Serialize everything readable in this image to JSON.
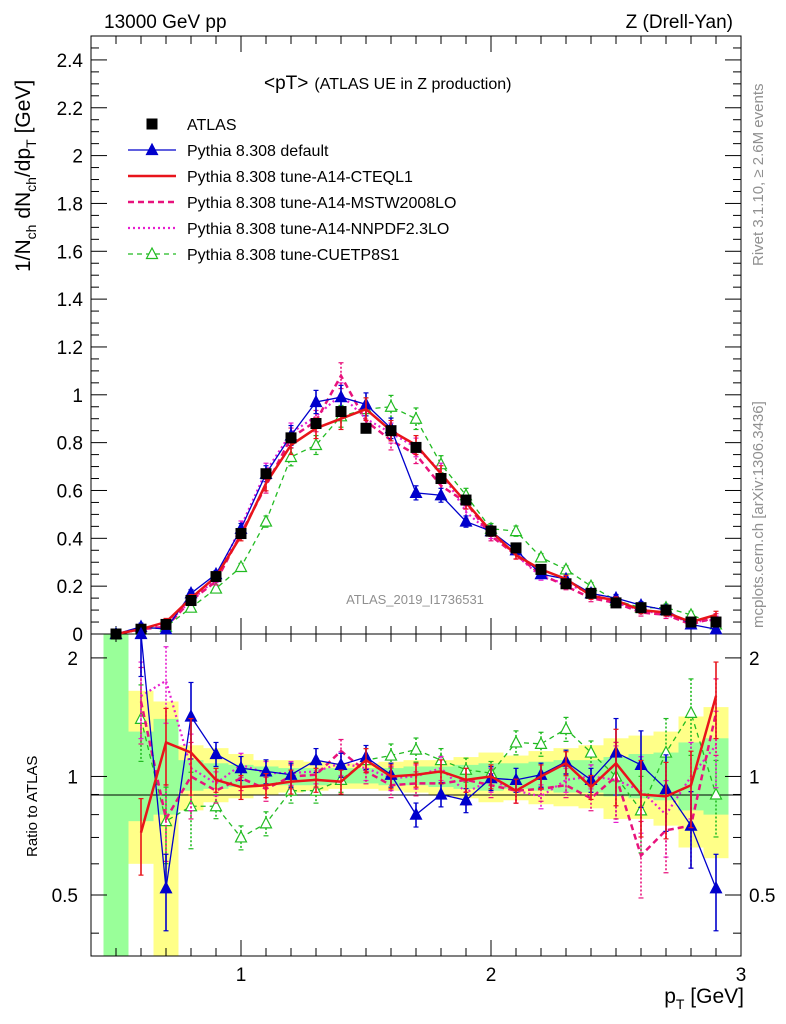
{
  "header": {
    "left": "13000 GeV pp",
    "right": "Z (Drell-Yan)"
  },
  "side": {
    "top": "Rivet 3.1.10, ≥ 2.6M events",
    "bottom": "mcplots.cern.ch [arXiv:1306.3436]"
  },
  "watermark": "ATLAS_2019_I1736531",
  "colors": {
    "data": "#000000",
    "default": "#0000cc",
    "cteql1": "#e8141b",
    "mstw": "#e8127c",
    "nnpdf": "#e61ecf",
    "cuetp": "#22bb22",
    "band_green": "#99ff99",
    "band_yellow": "#ffff88"
  },
  "chart_data": [
    {
      "type": "line",
      "title": "<pT>",
      "title_note": "(ATLAS UE in Z production)",
      "ylabel": {
        "p1": "1/N",
        "s1": "ch",
        "p2": " dN",
        "s2": "ch",
        "p3": "/dp",
        "s3": "T",
        "p4": " [GeV]"
      },
      "xlim": [
        0.4,
        3.0
      ],
      "ylim": [
        0,
        2.5
      ],
      "yticks": [
        "0",
        "0.2",
        "0.4",
        "0.6",
        "0.8",
        "1",
        "1.2",
        "1.4",
        "1.6",
        "1.8",
        "2",
        "2.2",
        "2.4"
      ],
      "legend_position": "top-left",
      "x": [
        0.5,
        0.6,
        0.7,
        0.8,
        0.9,
        1.0,
        1.1,
        1.2,
        1.3,
        1.4,
        1.5,
        1.6,
        1.7,
        1.8,
        1.9,
        2.0,
        2.1,
        2.2,
        2.3,
        2.4,
        2.5,
        2.6,
        2.7,
        2.8,
        2.9
      ],
      "series": [
        {
          "name": "ATLAS",
          "values": [
            0.0,
            0.02,
            0.04,
            0.14,
            0.24,
            0.42,
            0.67,
            0.82,
            0.88,
            0.93,
            0.86,
            0.85,
            0.78,
            0.65,
            0.56,
            0.43,
            0.36,
            0.27,
            0.21,
            0.17,
            0.13,
            0.11,
            0.1,
            0.05,
            0.05
          ]
        },
        {
          "name": "Pythia 8.308 default",
          "values": [
            0.0,
            0.03,
            0.02,
            0.17,
            0.25,
            0.44,
            0.67,
            0.83,
            0.97,
            0.99,
            0.96,
            0.86,
            0.59,
            0.58,
            0.47,
            0.43,
            0.35,
            0.25,
            0.23,
            0.17,
            0.15,
            0.12,
            0.1,
            0.04,
            0.02
          ]
        },
        {
          "name": "Pythia 8.308 tune-A14-CTEQL1",
          "values": [
            0.0,
            0.02,
            0.05,
            0.15,
            0.24,
            0.41,
            0.63,
            0.79,
            0.86,
            0.9,
            0.94,
            0.85,
            0.79,
            0.67,
            0.55,
            0.43,
            0.33,
            0.27,
            0.23,
            0.16,
            0.14,
            0.1,
            0.09,
            0.05,
            0.08
          ]
        },
        {
          "name": "Pythia 8.308 tune-A14-MSTW2008LO",
          "values": [
            0.0,
            0.02,
            0.03,
            0.14,
            0.22,
            0.42,
            0.62,
            0.82,
            0.89,
            1.08,
            0.89,
            0.81,
            0.75,
            0.62,
            0.55,
            0.41,
            0.33,
            0.25,
            0.2,
            0.15,
            0.13,
            0.09,
            0.08,
            0.04,
            0.07
          ]
        },
        {
          "name": "Pythia 8.308 tune-A14-NNPDF2.3LO",
          "values": [
            0.0,
            0.02,
            0.04,
            0.14,
            0.23,
            0.45,
            0.68,
            0.84,
            0.91,
            1.0,
            0.9,
            0.84,
            0.78,
            0.68,
            0.51,
            0.42,
            0.33,
            0.24,
            0.21,
            0.17,
            0.13,
            0.1,
            0.08,
            0.05,
            0.06
          ]
        },
        {
          "name": "Pythia 8.308 tune-CUETP8S1",
          "values": [
            0.0,
            0.02,
            0.03,
            0.11,
            0.19,
            0.28,
            0.47,
            0.74,
            0.79,
            0.91,
            0.94,
            0.95,
            0.9,
            0.71,
            0.58,
            0.44,
            0.43,
            0.32,
            0.27,
            0.2,
            0.14,
            0.11,
            0.11,
            0.08,
            0.04
          ]
        }
      ]
    },
    {
      "type": "line",
      "ylabel": "Ratio to ATLAS",
      "xlabel": {
        "p1": "p",
        "s1": "T",
        "p2": " [GeV]"
      },
      "xlim": [
        0.4,
        3.0
      ],
      "ylim": [
        0.35,
        2.3
      ],
      "yscale": "log",
      "xticks": [
        "1",
        "2",
        "3"
      ],
      "yticks": [
        "0.5",
        "1",
        "2"
      ],
      "x": [
        0.6,
        0.7,
        0.8,
        0.9,
        1.0,
        1.1,
        1.2,
        1.3,
        1.4,
        1.5,
        1.6,
        1.7,
        1.8,
        1.9,
        2.0,
        2.1,
        2.2,
        2.3,
        2.4,
        2.5,
        2.6,
        2.7,
        2.8,
        2.9
      ],
      "series": [
        {
          "name": "Pythia 8.308 default",
          "values": [
            2.3,
            0.52,
            1.42,
            1.14,
            1.05,
            1.03,
            1.01,
            1.1,
            1.07,
            1.12,
            1.01,
            0.8,
            0.9,
            0.87,
            0.99,
            0.98,
            1.01,
            1.09,
            0.98,
            1.15,
            1.07,
            0.93,
            0.75,
            0.52
          ]
        },
        {
          "name": "Pythia 8.308 tune-A14-CTEQL1",
          "values": [
            0.72,
            1.22,
            1.15,
            0.98,
            0.94,
            0.95,
            0.97,
            0.98,
            0.97,
            1.1,
            1.0,
            1.01,
            1.03,
            0.98,
            1.0,
            0.92,
            1.0,
            1.08,
            0.94,
            1.08,
            0.9,
            0.89,
            0.95,
            1.6
          ]
        },
        {
          "name": "Pythia 8.308 tune-A14-MSTW2008LO",
          "values": [
            1.55,
            0.78,
            1.0,
            0.92,
            0.99,
            0.93,
            1.0,
            1.01,
            1.16,
            1.03,
            0.95,
            0.96,
            0.96,
            0.98,
            0.95,
            0.92,
            0.93,
            0.95,
            0.88,
            1.0,
            0.63,
            0.73,
            0.75,
            1.45
          ]
        },
        {
          "name": "Pythia 8.308 tune-A14-NNPDF2.3LO",
          "values": [
            1.6,
            1.75,
            1.05,
            0.96,
            1.07,
            1.02,
            1.02,
            1.03,
            1.08,
            1.05,
            0.99,
            1.0,
            1.05,
            0.91,
            0.98,
            0.92,
            0.89,
            0.98,
            1.0,
            0.98,
            0.92,
            0.8,
            1.0,
            1.2
          ]
        },
        {
          "name": "Pythia 8.308 tune-CUETP8S1",
          "values": [
            1.4,
            0.77,
            0.84,
            0.84,
            0.7,
            0.76,
            0.92,
            0.92,
            0.98,
            1.1,
            1.13,
            1.17,
            1.1,
            1.04,
            1.02,
            1.22,
            1.21,
            1.32,
            1.15,
            1.0,
            0.82,
            1.15,
            1.45,
            0.9
          ]
        }
      ]
    }
  ]
}
